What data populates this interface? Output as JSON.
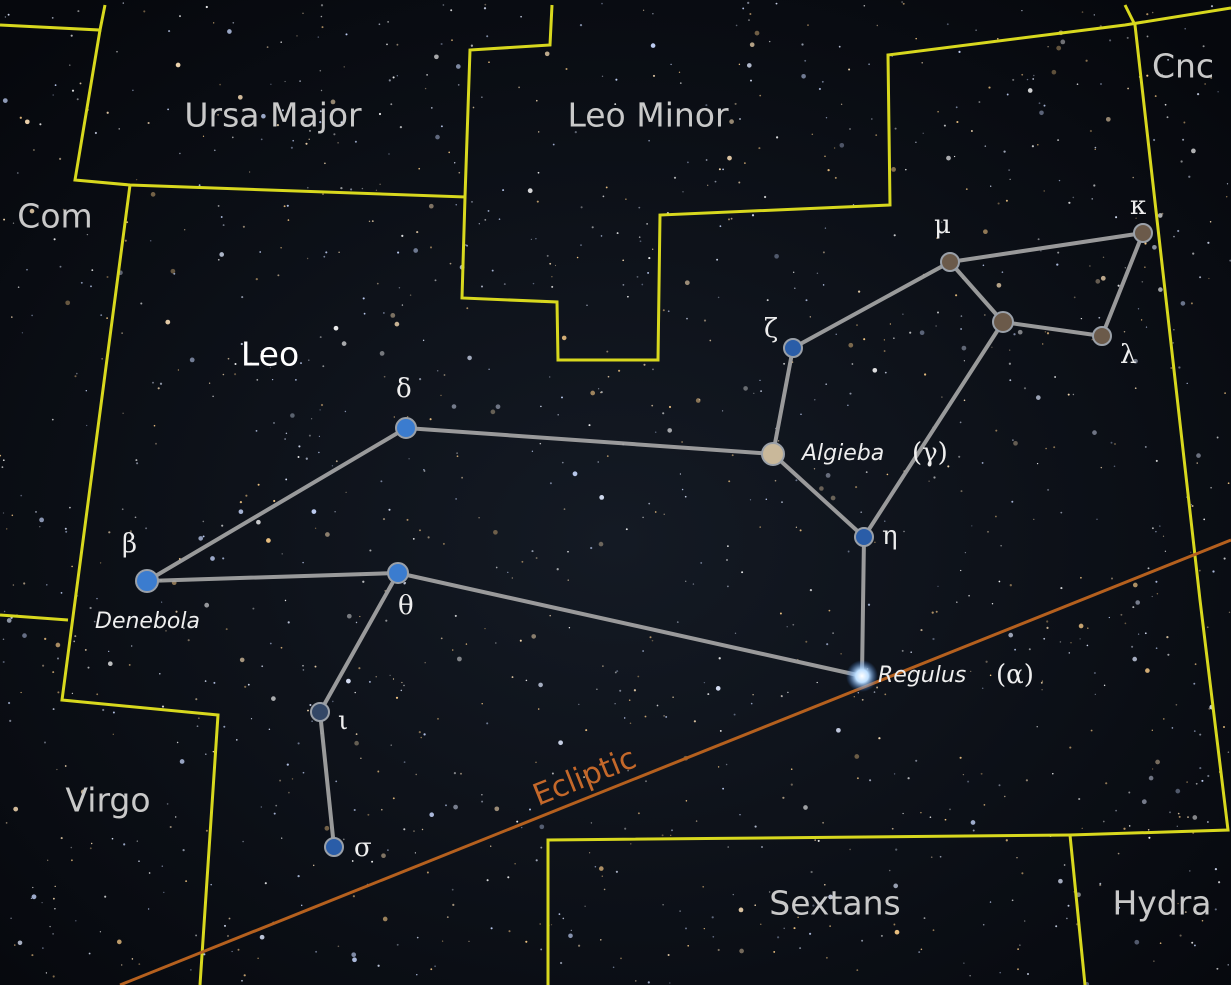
{
  "constellations": [
    {
      "label": "Ursa Major"
    },
    {
      "label": "Leo Minor"
    },
    {
      "label": "Cnc"
    },
    {
      "label": "Com"
    },
    {
      "label": "Leo"
    },
    {
      "label": "Virgo"
    },
    {
      "label": "Sextans"
    },
    {
      "label": "Hydra"
    }
  ],
  "stars": [
    {
      "label": "κ"
    },
    {
      "label": "μ"
    },
    {
      "label": "λ"
    },
    {
      "label": "ζ"
    },
    {
      "label": "δ"
    },
    {
      "name": "Algieba",
      "label": "(γ)"
    },
    {
      "label": "η"
    },
    {
      "label": "β",
      "name": "Denebola"
    },
    {
      "label": "θ"
    },
    {
      "name": "Regulus",
      "label": "(α)"
    },
    {
      "label": "ι"
    },
    {
      "label": "σ"
    }
  ],
  "ecliptic": "Ecliptic"
}
